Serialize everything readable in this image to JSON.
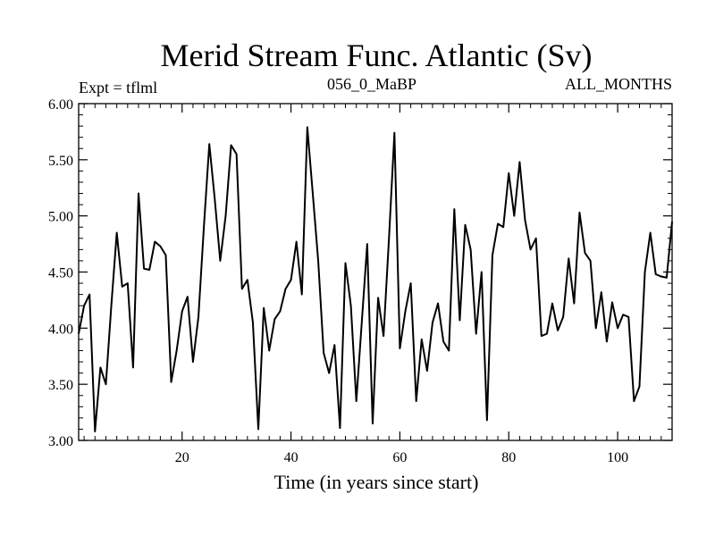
{
  "chart_data": {
    "type": "line",
    "title": "Merid Stream Func. Atlantic (Sv)",
    "subtitle_left": "Expt = tflml",
    "subtitle_center": "056_0_MaBP",
    "subtitle_right": "ALL_MONTHS",
    "xlabel": "Time (in years since start)",
    "ylabel": "",
    "xlim": [
      1,
      110
    ],
    "ylim": [
      3.0,
      6.0
    ],
    "x_ticks": [
      20,
      40,
      60,
      80,
      100
    ],
    "x_tick_labels": [
      "20",
      "40",
      "60",
      "80",
      "100"
    ],
    "y_ticks": [
      3.0,
      3.5,
      4.0,
      4.5,
      5.0,
      5.5,
      6.0
    ],
    "y_tick_labels": [
      "3.00",
      "3.50",
      "4.00",
      "4.50",
      "5.00",
      "5.50",
      "6.00"
    ],
    "grid": false,
    "series": [
      {
        "name": "Merid Stream Func. Atlantic",
        "color": "#000000",
        "x": [
          1,
          2,
          3,
          4,
          5,
          6,
          7,
          8,
          9,
          10,
          11,
          12,
          13,
          14,
          15,
          16,
          17,
          18,
          19,
          20,
          21,
          22,
          23,
          24,
          25,
          26,
          27,
          28,
          29,
          30,
          31,
          32,
          33,
          34,
          35,
          36,
          37,
          38,
          39,
          40,
          41,
          42,
          43,
          44,
          45,
          46,
          47,
          48,
          49,
          50,
          51,
          52,
          53,
          54,
          55,
          56,
          57,
          58,
          59,
          60,
          61,
          62,
          63,
          64,
          65,
          66,
          67,
          68,
          69,
          70,
          71,
          72,
          73,
          74,
          75,
          76,
          77,
          78,
          79,
          80,
          81,
          82,
          83,
          84,
          85,
          86,
          87,
          88,
          89,
          90,
          91,
          92,
          93,
          94,
          95,
          96,
          97,
          98,
          99,
          100,
          101,
          102,
          103,
          104,
          105,
          106,
          107,
          108,
          109,
          110
        ],
        "values": [
          3.95,
          4.2,
          4.3,
          3.08,
          3.65,
          3.5,
          4.2,
          4.85,
          4.37,
          4.4,
          3.65,
          5.2,
          4.53,
          4.52,
          4.77,
          4.73,
          4.65,
          3.52,
          3.8,
          4.15,
          4.28,
          3.7,
          4.1,
          4.9,
          5.64,
          5.15,
          4.6,
          5.0,
          5.63,
          5.55,
          4.35,
          4.43,
          4.05,
          3.1,
          4.18,
          3.8,
          4.08,
          4.15,
          4.35,
          4.43,
          4.77,
          4.3,
          5.79,
          5.2,
          4.6,
          3.78,
          3.6,
          3.85,
          3.11,
          4.58,
          4.2,
          3.35,
          4.05,
          4.75,
          3.15,
          4.27,
          3.93,
          4.8,
          5.74,
          3.82,
          4.15,
          4.4,
          3.35,
          3.9,
          3.62,
          4.05,
          4.22,
          3.88,
          3.8,
          5.06,
          4.07,
          4.92,
          4.7,
          3.95,
          4.5,
          3.18,
          4.65,
          4.93,
          4.9,
          5.38,
          5.0,
          5.48,
          4.96,
          4.7,
          4.8,
          3.93,
          3.95,
          4.22,
          3.98,
          4.1,
          4.62,
          4.22,
          5.03,
          4.67,
          4.6,
          4.0,
          4.32,
          3.88,
          4.23,
          4.0,
          4.12,
          4.1,
          3.35,
          3.48,
          4.5,
          4.85,
          4.48,
          4.46,
          4.45,
          4.95
        ]
      }
    ]
  }
}
